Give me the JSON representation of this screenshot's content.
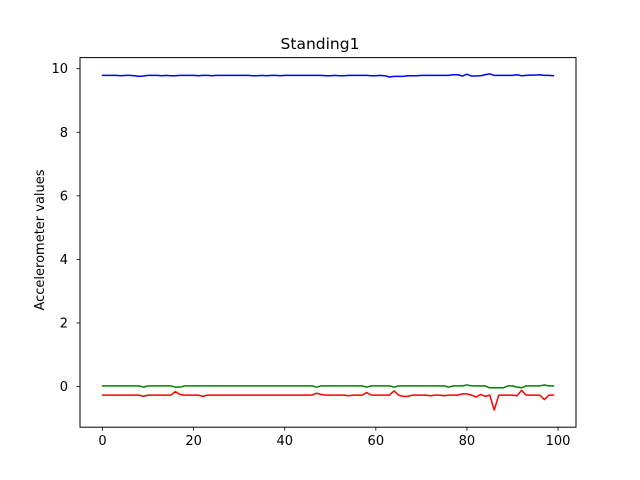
{
  "chart_data": {
    "type": "line",
    "title": "Standing1",
    "xlabel": "",
    "ylabel": "Accelerometer values",
    "xlim": [
      -4.95,
      103.95
    ],
    "ylim": [
      -1.28,
      10.35
    ],
    "x_ticks": [
      0,
      20,
      40,
      60,
      80,
      100
    ],
    "y_ticks": [
      0,
      2,
      4,
      6,
      8,
      10
    ],
    "grid": false,
    "legend": "none",
    "x": [
      0,
      1,
      2,
      3,
      4,
      5,
      6,
      7,
      8,
      9,
      10,
      11,
      12,
      13,
      14,
      15,
      16,
      17,
      18,
      19,
      20,
      21,
      22,
      23,
      24,
      25,
      26,
      27,
      28,
      29,
      30,
      31,
      32,
      33,
      34,
      35,
      36,
      37,
      38,
      39,
      40,
      41,
      42,
      43,
      44,
      45,
      46,
      47,
      48,
      49,
      50,
      51,
      52,
      53,
      54,
      55,
      56,
      57,
      58,
      59,
      60,
      61,
      62,
      63,
      64,
      65,
      66,
      67,
      68,
      69,
      70,
      71,
      72,
      73,
      74,
      75,
      76,
      77,
      78,
      79,
      80,
      81,
      82,
      83,
      84,
      85,
      86,
      87,
      88,
      89,
      90,
      91,
      92,
      93,
      94,
      95,
      96,
      97,
      98,
      99
    ],
    "series": [
      {
        "color": "#0000ff",
        "values": [
          9.79,
          9.79,
          9.79,
          9.79,
          9.78,
          9.79,
          9.79,
          9.78,
          9.76,
          9.77,
          9.79,
          9.79,
          9.79,
          9.78,
          9.79,
          9.78,
          9.78,
          9.79,
          9.79,
          9.79,
          9.79,
          9.78,
          9.79,
          9.79,
          9.78,
          9.79,
          9.79,
          9.79,
          9.79,
          9.79,
          9.79,
          9.79,
          9.79,
          9.78,
          9.78,
          9.79,
          9.78,
          9.79,
          9.79,
          9.78,
          9.79,
          9.79,
          9.79,
          9.79,
          9.79,
          9.79,
          9.79,
          9.79,
          9.79,
          9.78,
          9.78,
          9.79,
          9.78,
          9.78,
          9.79,
          9.79,
          9.79,
          9.79,
          9.79,
          9.78,
          9.78,
          9.79,
          9.78,
          9.74,
          9.76,
          9.76,
          9.76,
          9.78,
          9.78,
          9.78,
          9.79,
          9.79,
          9.79,
          9.79,
          9.79,
          9.79,
          9.79,
          9.81,
          9.81,
          9.77,
          9.83,
          9.77,
          9.77,
          9.78,
          9.81,
          9.84,
          9.79,
          9.79,
          9.79,
          9.79,
          9.79,
          9.81,
          9.78,
          9.79,
          9.8,
          9.8,
          9.81,
          9.79,
          9.79,
          9.78
        ]
      },
      {
        "color": "#008000",
        "values": [
          0.02,
          0.02,
          0.02,
          0.02,
          0.02,
          0.02,
          0.02,
          0.02,
          0.02,
          -0.02,
          0.02,
          0.02,
          0.02,
          0.02,
          0.02,
          0.02,
          -0.02,
          -0.02,
          0.02,
          0.02,
          0.02,
          0.02,
          0.02,
          0.02,
          0.02,
          0.02,
          0.02,
          0.02,
          0.02,
          0.02,
          0.02,
          0.02,
          0.02,
          0.02,
          0.02,
          0.02,
          0.02,
          0.02,
          0.02,
          0.02,
          0.02,
          0.02,
          0.02,
          0.02,
          0.02,
          0.02,
          0.02,
          -0.02,
          0.02,
          0.02,
          0.02,
          0.02,
          0.02,
          0.02,
          0.02,
          0.02,
          0.02,
          0.02,
          -0.02,
          0.02,
          0.02,
          0.02,
          0.02,
          0.02,
          -0.02,
          0.02,
          0.02,
          0.02,
          0.02,
          0.02,
          0.02,
          0.02,
          0.02,
          0.02,
          0.02,
          0.02,
          -0.02,
          0.02,
          0.02,
          0.02,
          0.05,
          0.02,
          0.02,
          0.02,
          0.02,
          -0.04,
          -0.04,
          -0.04,
          -0.04,
          0.02,
          0.02,
          -0.02,
          -0.04,
          0.02,
          0.02,
          0.02,
          0.02,
          0.05,
          0.02,
          0.02
        ]
      },
      {
        "color": "#ff0000",
        "values": [
          -0.27,
          -0.27,
          -0.27,
          -0.27,
          -0.27,
          -0.27,
          -0.27,
          -0.27,
          -0.27,
          -0.31,
          -0.27,
          -0.27,
          -0.27,
          -0.27,
          -0.27,
          -0.27,
          -0.16,
          -0.25,
          -0.27,
          -0.27,
          -0.27,
          -0.27,
          -0.31,
          -0.27,
          -0.27,
          -0.27,
          -0.27,
          -0.27,
          -0.27,
          -0.27,
          -0.27,
          -0.27,
          -0.27,
          -0.27,
          -0.27,
          -0.27,
          -0.27,
          -0.27,
          -0.27,
          -0.27,
          -0.27,
          -0.27,
          -0.27,
          -0.27,
          -0.27,
          -0.27,
          -0.27,
          -0.21,
          -0.25,
          -0.27,
          -0.27,
          -0.27,
          -0.27,
          -0.27,
          -0.29,
          -0.27,
          -0.27,
          -0.27,
          -0.19,
          -0.27,
          -0.27,
          -0.27,
          -0.27,
          -0.27,
          -0.14,
          -0.27,
          -0.31,
          -0.31,
          -0.27,
          -0.27,
          -0.27,
          -0.27,
          -0.29,
          -0.27,
          -0.27,
          -0.29,
          -0.27,
          -0.27,
          -0.27,
          -0.23,
          -0.23,
          -0.27,
          -0.33,
          -0.25,
          -0.31,
          -0.27,
          -0.74,
          -0.27,
          -0.27,
          -0.27,
          -0.27,
          -0.29,
          -0.12,
          -0.27,
          -0.27,
          -0.27,
          -0.27,
          -0.41,
          -0.27,
          -0.27
        ]
      }
    ]
  }
}
